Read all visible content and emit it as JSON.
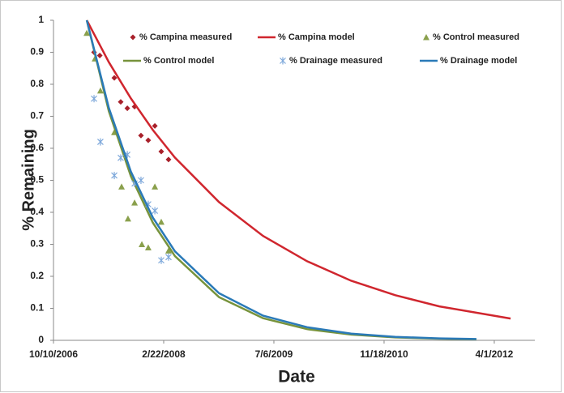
{
  "chart_data": {
    "type": "scatter",
    "x_label": "Date",
    "y_label": "% Remaining",
    "xlim": [
      "2006-10-10",
      "2012-10-02"
    ],
    "xticks": [
      {
        "value": "2006-10-10",
        "label": "10/10/2006"
      },
      {
        "value": "2008-02-22",
        "label": "2/22/2008"
      },
      {
        "value": "2009-07-06",
        "label": "7/6/2009"
      },
      {
        "value": "2010-11-18",
        "label": "11/18/2010"
      },
      {
        "value": "2012-04-01",
        "label": "4/1/2012"
      }
    ],
    "ylim": [
      0,
      1
    ],
    "yticks": [
      0,
      0.1,
      0.2,
      0.3,
      0.4,
      0.5,
      0.6,
      0.7,
      0.8,
      0.9,
      1
    ],
    "grid": false,
    "series": [
      {
        "name": "% Campina measured",
        "mode": "markers",
        "marker": "diamond",
        "color": "#a8202a",
        "x": [
          "2007-04-12",
          "2007-05-08",
          "2007-07-13",
          "2007-08-11",
          "2007-09-10",
          "2007-10-13",
          "2007-11-11",
          "2007-12-14",
          "2008-01-13",
          "2008-02-11",
          "2008-03-15"
        ],
        "values": [
          0.9,
          0.89,
          0.82,
          0.745,
          0.725,
          0.73,
          0.64,
          0.625,
          0.67,
          0.59,
          0.565
        ]
      },
      {
        "name": "% Campina model",
        "mode": "line",
        "color": "#d0262e",
        "x": [
          "2007-03-10",
          "2007-06-18",
          "2007-09-26",
          "2008-01-04",
          "2008-04-13",
          "2008-10-30",
          "2009-05-18",
          "2009-12-04",
          "2010-06-22",
          "2011-01-08",
          "2011-07-27",
          "2012-06-14"
        ],
        "values": [
          1.0,
          0.869,
          0.756,
          0.657,
          0.571,
          0.432,
          0.326,
          0.247,
          0.186,
          0.141,
          0.106,
          0.068
        ]
      },
      {
        "name": "% Control measured",
        "mode": "markers",
        "marker": "triangle",
        "color": "#8aa04c",
        "x": [
          "2007-03-10",
          "2007-04-16",
          "2007-05-11",
          "2007-07-13",
          "2007-08-15",
          "2007-09-13",
          "2007-10-13",
          "2007-11-15",
          "2007-12-14",
          "2008-01-13",
          "2008-02-11",
          "2008-03-15"
        ],
        "values": [
          0.96,
          0.88,
          0.78,
          0.65,
          0.48,
          0.38,
          0.43,
          0.3,
          0.29,
          0.48,
          0.37,
          0.28
        ]
      },
      {
        "name": "% Control model",
        "mode": "line",
        "color": "#77933c",
        "x": [
          "2007-03-10",
          "2007-06-18",
          "2007-09-26",
          "2008-01-04",
          "2008-04-13",
          "2008-10-30",
          "2009-05-18",
          "2009-12-04",
          "2010-06-22",
          "2011-01-08",
          "2011-07-27",
          "2012-01-11"
        ],
        "values": [
          1.0,
          0.716,
          0.513,
          0.367,
          0.263,
          0.135,
          0.069,
          0.035,
          0.018,
          0.009,
          0.005,
          0.003
        ]
      },
      {
        "name": "% Drainage measured",
        "mode": "markers",
        "marker": "asterisk",
        "color": "#7fa9db",
        "x": [
          "2007-04-12",
          "2007-05-11",
          "2007-07-13",
          "2007-08-11",
          "2007-09-10",
          "2007-10-13",
          "2007-11-11",
          "2007-12-14",
          "2008-01-13",
          "2008-02-11",
          "2008-03-15"
        ],
        "values": [
          0.755,
          0.62,
          0.515,
          0.57,
          0.58,
          0.49,
          0.5,
          0.425,
          0.405,
          0.25,
          0.26
        ]
      },
      {
        "name": "% Drainage model",
        "mode": "line",
        "color": "#2a7ab8",
        "x": [
          "2007-03-10",
          "2007-06-18",
          "2007-09-26",
          "2008-01-04",
          "2008-04-13",
          "2008-10-30",
          "2009-05-18",
          "2009-12-04",
          "2010-06-22",
          "2011-01-08",
          "2011-07-27",
          "2012-01-11"
        ],
        "values": [
          1.0,
          0.726,
          0.527,
          0.383,
          0.278,
          0.147,
          0.077,
          0.041,
          0.021,
          0.011,
          0.006,
          0.004
        ]
      }
    ]
  }
}
